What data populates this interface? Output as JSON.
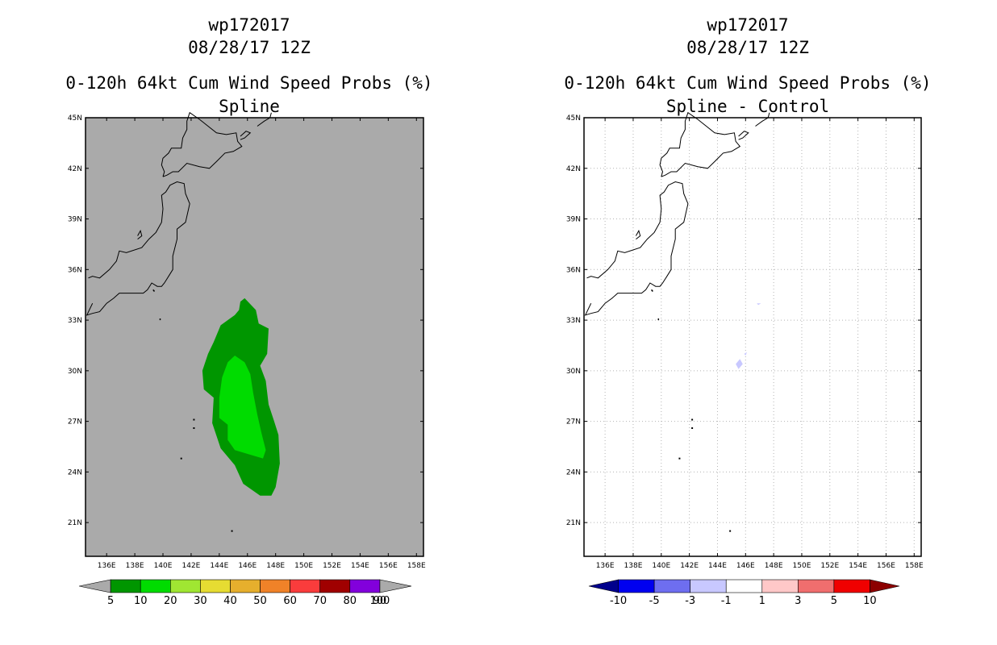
{
  "chart_data": [
    {
      "type": "heatmap",
      "panel": "left",
      "storm_id": "wp172017",
      "datetime": "08/28/17 12Z",
      "title": "0-120h 64kt Cum Wind Speed Probs (%)",
      "subtitle": "Spline",
      "background_color": "#aaaaaa",
      "xlim": [
        134.5,
        158.5
      ],
      "ylim": [
        19.0,
        45.0
      ],
      "x_ticks": [
        "136E",
        "138E",
        "140E",
        "142E",
        "144E",
        "146E",
        "148E",
        "150E",
        "152E",
        "154E",
        "156E",
        "158E"
      ],
      "y_ticks": [
        "45N",
        "42N",
        "39N",
        "36N",
        "33N",
        "30N",
        "27N",
        "24N",
        "21N"
      ],
      "grid": false,
      "contours": [
        {
          "level": "5-10",
          "color": "#009600",
          "lonlat": [
            [
              145.5,
              34.1
            ],
            [
              145.8,
              34.3
            ],
            [
              146.6,
              33.6
            ],
            [
              146.8,
              32.8
            ],
            [
              147.5,
              32.5
            ],
            [
              147.4,
              31.0
            ],
            [
              146.9,
              30.3
            ],
            [
              147.3,
              29.4
            ],
            [
              147.5,
              28.0
            ],
            [
              147.9,
              27.0
            ],
            [
              148.2,
              26.2
            ],
            [
              148.3,
              24.5
            ],
            [
              148.0,
              23.1
            ],
            [
              147.7,
              22.6
            ],
            [
              146.9,
              22.6
            ],
            [
              145.7,
              23.3
            ],
            [
              145.1,
              24.4
            ],
            [
              144.1,
              25.4
            ],
            [
              143.5,
              26.9
            ],
            [
              143.6,
              28.4
            ],
            [
              142.9,
              28.9
            ],
            [
              142.8,
              30.0
            ],
            [
              143.2,
              31.0
            ],
            [
              143.6,
              31.7
            ],
            [
              144.1,
              32.7
            ],
            [
              145.1,
              33.3
            ],
            [
              145.4,
              33.6
            ]
          ]
        },
        {
          "level": "10-20",
          "color": "#00dc00",
          "lonlat": [
            [
              145.1,
              30.9
            ],
            [
              145.8,
              30.5
            ],
            [
              146.2,
              29.8
            ],
            [
              146.4,
              28.7
            ],
            [
              146.7,
              27.4
            ],
            [
              147.0,
              26.3
            ],
            [
              147.3,
              25.3
            ],
            [
              147.1,
              24.8
            ],
            [
              146.3,
              25.0
            ],
            [
              145.1,
              25.3
            ],
            [
              144.6,
              25.9
            ],
            [
              144.6,
              26.8
            ],
            [
              144.0,
              27.2
            ],
            [
              144.0,
              28.4
            ],
            [
              144.2,
              29.6
            ],
            [
              144.6,
              30.5
            ]
          ]
        }
      ],
      "colorbar": {
        "type": "triangles-both",
        "labels": [
          "5",
          "10",
          "20",
          "30",
          "40",
          "50",
          "60",
          "70",
          "80",
          "90",
          "100"
        ],
        "colors": [
          "#009600",
          "#00dc00",
          "#a0e632",
          "#e6dc32",
          "#e6af2d",
          "#f08228",
          "#fa3c3c",
          "#a00000",
          "#8200dc"
        ],
        "end_color": "#aaaaaa"
      }
    },
    {
      "type": "heatmap",
      "panel": "right",
      "storm_id": "wp172017",
      "datetime": "08/28/17 12Z",
      "title": "0-120h 64kt Cum Wind Speed Probs (%)",
      "subtitle": "Spline - Control",
      "background_color": "#ffffff",
      "xlim": [
        134.5,
        158.5
      ],
      "ylim": [
        19.0,
        45.0
      ],
      "x_ticks": [
        "136E",
        "138E",
        "140E",
        "142E",
        "144E",
        "146E",
        "148E",
        "150E",
        "152E",
        "154E",
        "156E",
        "158E"
      ],
      "y_ticks": [
        "45N",
        "42N",
        "39N",
        "36N",
        "33N",
        "30N",
        "27N",
        "24N",
        "21N"
      ],
      "grid": true,
      "difference_spots": [
        {
          "lonlat": [
            [
              145.3,
              30.4
            ],
            [
              145.6,
              30.7
            ],
            [
              145.8,
              30.4
            ],
            [
              145.5,
              30.1
            ]
          ],
          "color": "#c8c8ff"
        },
        {
          "lonlat": [
            [
              145.9,
              31.0
            ],
            [
              146.1,
              31.1
            ],
            [
              146.0,
              30.9
            ]
          ],
          "color": "#c8c8ff"
        },
        {
          "lonlat": [
            [
              146.8,
              34.0
            ],
            [
              147.1,
              34.0
            ],
            [
              146.9,
              33.9
            ]
          ],
          "color": "#c8c8ff"
        }
      ],
      "colorbar": {
        "type": "triangles-both",
        "labels": [
          "-10",
          "-5",
          "-3",
          "-1",
          "1",
          "3",
          "5",
          "10"
        ],
        "colors": [
          "#0000f0",
          "#6e6ef0",
          "#c8c8ff",
          "#ffffff",
          "#ffc8c8",
          "#f06e6e",
          "#f00000"
        ],
        "left_end_color": "#00008c",
        "right_end_color": "#8c0000"
      }
    }
  ],
  "coastlines": {
    "japan_main": [
      [
        135.0,
        34.0
      ],
      [
        134.6,
        33.3
      ],
      [
        135.0,
        33.4
      ],
      [
        135.5,
        33.5
      ],
      [
        136.0,
        34.0
      ],
      [
        136.5,
        34.3
      ],
      [
        136.9,
        34.6
      ],
      [
        137.3,
        34.6
      ],
      [
        138.0,
        34.6
      ],
      [
        138.6,
        34.6
      ],
      [
        138.9,
        34.8
      ],
      [
        139.2,
        35.2
      ],
      [
        139.6,
        35.0
      ],
      [
        139.9,
        35.0
      ],
      [
        140.1,
        35.2
      ],
      [
        140.4,
        35.6
      ],
      [
        140.7,
        36.0
      ],
      [
        140.7,
        36.8
      ],
      [
        141.0,
        37.8
      ],
      [
        141.0,
        38.4
      ],
      [
        141.6,
        38.8
      ],
      [
        141.9,
        39.9
      ],
      [
        141.6,
        40.5
      ],
      [
        141.5,
        41.1
      ],
      [
        141.0,
        41.2
      ],
      [
        140.5,
        41.0
      ],
      [
        140.2,
        40.6
      ],
      [
        139.9,
        40.4
      ],
      [
        140.0,
        39.6
      ],
      [
        139.9,
        38.8
      ],
      [
        139.5,
        38.2
      ],
      [
        139.0,
        37.8
      ],
      [
        138.5,
        37.3
      ],
      [
        137.4,
        37.0
      ],
      [
        136.9,
        37.1
      ],
      [
        136.7,
        36.5
      ],
      [
        136.2,
        36.0
      ],
      [
        135.5,
        35.5
      ],
      [
        135.0,
        35.6
      ],
      [
        134.7,
        35.5
      ]
    ],
    "hokkaido": [
      [
        140.0,
        41.5
      ],
      [
        140.3,
        41.6
      ],
      [
        140.7,
        41.8
      ],
      [
        141.1,
        41.8
      ],
      [
        141.7,
        42.3
      ],
      [
        142.6,
        42.1
      ],
      [
        143.3,
        42.0
      ],
      [
        143.8,
        42.4
      ],
      [
        144.4,
        42.9
      ],
      [
        145.0,
        43.0
      ],
      [
        145.6,
        43.3
      ],
      [
        145.3,
        43.6
      ],
      [
        145.2,
        44.1
      ],
      [
        144.5,
        44.0
      ],
      [
        143.8,
        44.1
      ],
      [
        142.6,
        44.9
      ],
      [
        141.9,
        45.3
      ],
      [
        141.7,
        44.8
      ],
      [
        141.7,
        44.3
      ],
      [
        141.4,
        43.8
      ],
      [
        141.3,
        43.2
      ],
      [
        140.6,
        43.2
      ],
      [
        140.4,
        42.9
      ],
      [
        140.0,
        42.6
      ],
      [
        139.9,
        42.2
      ],
      [
        140.1,
        41.8
      ],
      [
        140.0,
        41.5
      ]
    ],
    "kunashir": [
      [
        145.5,
        43.7
      ],
      [
        145.8,
        43.8
      ],
      [
        146.2,
        44.1
      ],
      [
        145.9,
        44.2
      ],
      [
        145.5,
        43.9
      ]
    ],
    "iturup": [
      [
        146.7,
        44.5
      ],
      [
        147.2,
        44.8
      ],
      [
        147.6,
        45.0
      ],
      [
        147.7,
        45.3
      ]
    ],
    "sado": [
      [
        138.2,
        37.8
      ],
      [
        138.5,
        38.0
      ],
      [
        138.4,
        38.3
      ],
      [
        138.2,
        38.0
      ]
    ],
    "oshima": [
      [
        139.3,
        34.8
      ],
      [
        139.4,
        34.7
      ]
    ],
    "hachijo": [
      [
        139.8,
        33.1
      ],
      [
        139.8,
        33.0
      ]
    ],
    "small_islands": [
      [
        142.2,
        27.1
      ],
      [
        142.2,
        26.6
      ],
      [
        141.3,
        24.8
      ],
      [
        144.9,
        20.5
      ]
    ]
  }
}
